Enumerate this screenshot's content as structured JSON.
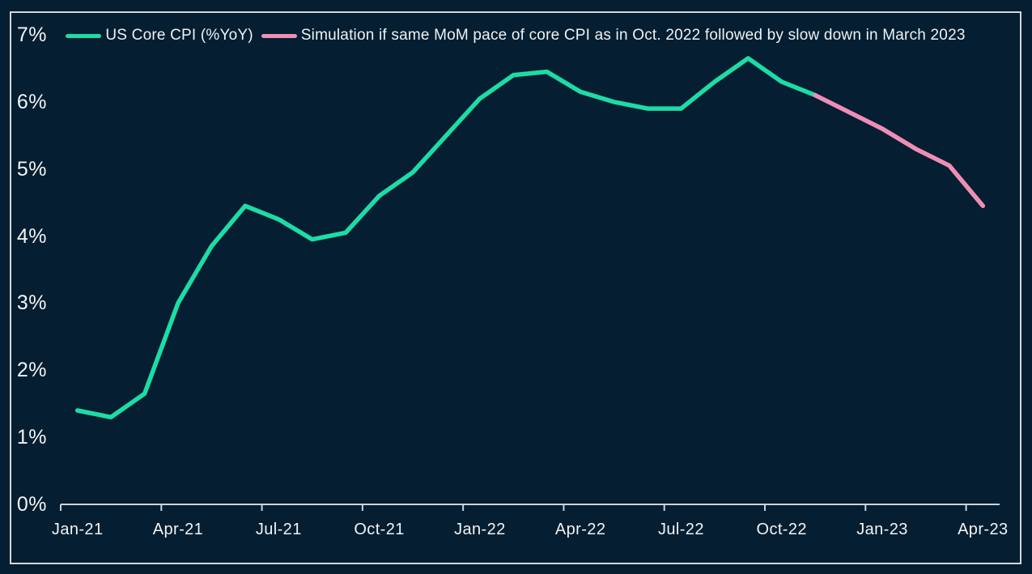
{
  "colors": {
    "background": "#051e31",
    "frame_border": "#d2d8da",
    "axis_line": "#ccd3d6",
    "text": "#f1f4f5",
    "actual_line": "#1ddca6",
    "simulation_line": "#ef8eb5"
  },
  "legend": {
    "position": "top-center"
  },
  "chart_data": {
    "type": "line",
    "title": "",
    "xlabel": "",
    "ylabel": "",
    "grid": false,
    "ylim": [
      0,
      7
    ],
    "yticks": [
      "7%",
      "6%",
      "5%",
      "4%",
      "3%",
      "2%",
      "1%",
      "0%"
    ],
    "x": [
      "Jan-21",
      "Feb-21",
      "Mar-21",
      "Apr-21",
      "May-21",
      "Jun-21",
      "Jul-21",
      "Aug-21",
      "Sep-21",
      "Oct-21",
      "Nov-21",
      "Dec-21",
      "Jan-22",
      "Feb-22",
      "Mar-22",
      "Apr-22",
      "May-22",
      "Jun-22",
      "Jul-22",
      "Aug-22",
      "Sep-22",
      "Oct-22",
      "Nov-22",
      "Dec-22",
      "Jan-23",
      "Feb-23",
      "Mar-23",
      "Apr-23"
    ],
    "x_tick_labels": [
      "Jan-21",
      "Apr-21",
      "Jul-21",
      "Oct-21",
      "Jan-22",
      "Apr-22",
      "Jul-22",
      "Oct-22",
      "Jan-23",
      "Apr-23"
    ],
    "x_tick_every_months": 3,
    "series": [
      {
        "name": "US Core CPI (%YoY)",
        "color": "#1ddca6",
        "values": [
          1.4,
          1.3,
          1.65,
          3.0,
          3.85,
          4.45,
          4.25,
          3.95,
          4.05,
          4.6,
          4.95,
          5.5,
          6.05,
          6.4,
          6.45,
          6.15,
          6.0,
          5.9,
          5.9,
          6.3,
          6.65,
          6.3,
          6.1,
          null,
          null,
          null,
          null,
          null
        ]
      },
      {
        "name": "Simulation if same MoM pace of core CPI as in Oct. 2022 followed by slow down in March 2023",
        "color": "#ef8eb5",
        "values": [
          null,
          null,
          null,
          null,
          null,
          null,
          null,
          null,
          null,
          null,
          null,
          null,
          null,
          null,
          null,
          null,
          null,
          null,
          null,
          null,
          null,
          null,
          6.1,
          5.85,
          5.6,
          5.3,
          5.05,
          4.45
        ]
      }
    ]
  }
}
